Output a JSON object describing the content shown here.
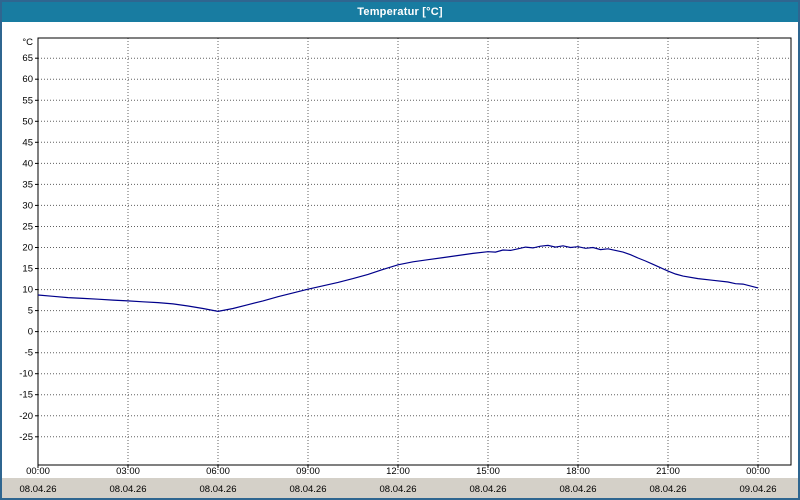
{
  "window": {
    "title": "Temperatur [°C]"
  },
  "colors": {
    "titlebar_bg": "#187CA1",
    "titlebar_text": "#FFFFFF",
    "window_border": "#2F6690",
    "strip_bg": "#D4D0C8",
    "grid": "#606060",
    "plot_bg": "#FFFFFF",
    "line": "#00008B"
  },
  "chart_data": {
    "type": "line",
    "title": "Temperatur [°C]",
    "y_unit_label": "°C",
    "grid": true,
    "legend": "none",
    "ylim": [
      -31.7,
      69.8
    ],
    "y_ticks": [
      65,
      60,
      55,
      50,
      45,
      40,
      35,
      30,
      25,
      20,
      15,
      10,
      5,
      0,
      -5,
      -10,
      -15,
      -20,
      -25
    ],
    "x_ticks": [
      {
        "hour": 0,
        "time": "00:00",
        "date": "08.04.26"
      },
      {
        "hour": 3,
        "time": "03:00",
        "date": "08.04.26"
      },
      {
        "hour": 6,
        "time": "06:00",
        "date": "08.04.26"
      },
      {
        "hour": 9,
        "time": "09:00",
        "date": "08.04.26"
      },
      {
        "hour": 12,
        "time": "12:00",
        "date": "08.04.26"
      },
      {
        "hour": 15,
        "time": "15:00",
        "date": "08.04.26"
      },
      {
        "hour": 18,
        "time": "18:00",
        "date": "08.04.26"
      },
      {
        "hour": 21,
        "time": "21:00",
        "date": "08.04.26"
      },
      {
        "hour": 24,
        "time": "00:00",
        "date": "09.04.26"
      }
    ],
    "series": [
      {
        "name": "Temperatur",
        "color": "#00008B",
        "points": [
          [
            0,
            8.7
          ],
          [
            0.5,
            8.4
          ],
          [
            1,
            8.1
          ],
          [
            1.5,
            7.9
          ],
          [
            2,
            7.7
          ],
          [
            2.5,
            7.5
          ],
          [
            3,
            7.3
          ],
          [
            3.5,
            7.1
          ],
          [
            4,
            6.9
          ],
          [
            4.5,
            6.6
          ],
          [
            5,
            6.1
          ],
          [
            5.5,
            5.5
          ],
          [
            6,
            4.8
          ],
          [
            6.5,
            5.5
          ],
          [
            7,
            6.4
          ],
          [
            7.5,
            7.3
          ],
          [
            8,
            8.3
          ],
          [
            8.5,
            9.2
          ],
          [
            9,
            10.1
          ],
          [
            9.5,
            10.9
          ],
          [
            10,
            11.7
          ],
          [
            10.5,
            12.6
          ],
          [
            11,
            13.6
          ],
          [
            11.5,
            14.8
          ],
          [
            12,
            15.9
          ],
          [
            12.5,
            16.6
          ],
          [
            13,
            17.1
          ],
          [
            13.5,
            17.6
          ],
          [
            14,
            18.1
          ],
          [
            14.5,
            18.6
          ],
          [
            15,
            19.0
          ],
          [
            15.25,
            18.9
          ],
          [
            15.5,
            19.4
          ],
          [
            15.75,
            19.3
          ],
          [
            16,
            19.7
          ],
          [
            16.25,
            20.1
          ],
          [
            16.5,
            19.9
          ],
          [
            16.75,
            20.3
          ],
          [
            17,
            20.5
          ],
          [
            17.25,
            20.1
          ],
          [
            17.5,
            20.4
          ],
          [
            17.75,
            20.0
          ],
          [
            18,
            20.2
          ],
          [
            18.25,
            19.8
          ],
          [
            18.5,
            20.0
          ],
          [
            18.75,
            19.5
          ],
          [
            19,
            19.7
          ],
          [
            19.25,
            19.3
          ],
          [
            19.5,
            18.9
          ],
          [
            19.75,
            18.3
          ],
          [
            20,
            17.5
          ],
          [
            20.25,
            16.8
          ],
          [
            20.5,
            16.0
          ],
          [
            21,
            14.4
          ],
          [
            21.25,
            13.7
          ],
          [
            21.5,
            13.2
          ],
          [
            22,
            12.6
          ],
          [
            22.5,
            12.2
          ],
          [
            23,
            11.8
          ],
          [
            23.25,
            11.4
          ],
          [
            23.5,
            11.3
          ],
          [
            24,
            10.4
          ]
        ]
      }
    ]
  }
}
